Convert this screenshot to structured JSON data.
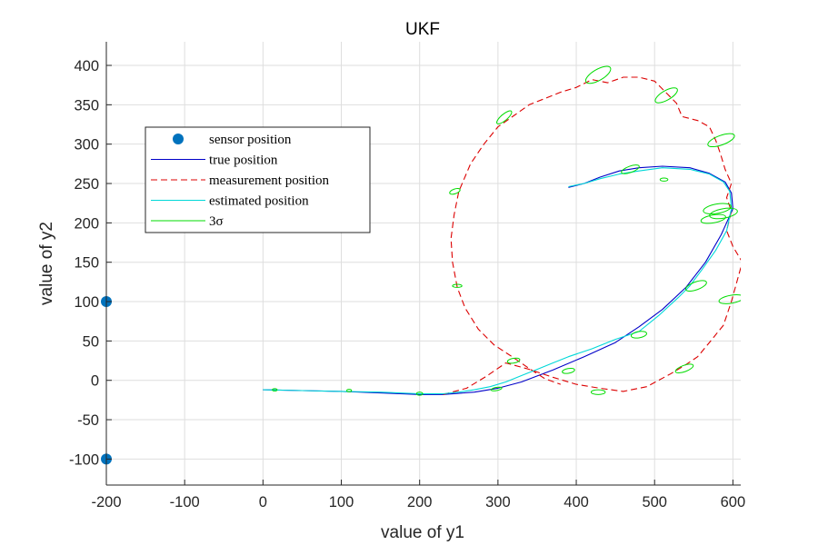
{
  "chart_data": {
    "type": "line",
    "title": "UKF",
    "xlabel": "value of y1",
    "ylabel": "value of y2",
    "xlim": [
      -200,
      610
    ],
    "ylim": [
      -133,
      430
    ],
    "xticks": [
      -200,
      -100,
      0,
      100,
      200,
      300,
      400,
      500,
      600
    ],
    "yticks": [
      -100,
      -50,
      0,
      50,
      100,
      150,
      200,
      250,
      300,
      350,
      400
    ],
    "grid": true,
    "legend_position": "upper-left",
    "legend": [
      {
        "label": "sensor position",
        "style": "marker"
      },
      {
        "label": "true position",
        "style": "solid"
      },
      {
        "label": "measurement position",
        "style": "dashed"
      },
      {
        "label": "estimated position",
        "style": "solid"
      },
      {
        "label": "3σ",
        "style": "solid"
      }
    ],
    "sensors": [
      {
        "x": -200,
        "y": 100
      },
      {
        "x": -200,
        "y": -100
      }
    ],
    "series": [
      {
        "name": "true position",
        "color": "#0000c8",
        "dash": "solid",
        "points": [
          [
            0,
            -12
          ],
          [
            50,
            -13
          ],
          [
            100,
            -14
          ],
          [
            150,
            -16
          ],
          [
            200,
            -18
          ],
          [
            230,
            -18
          ],
          [
            270,
            -15
          ],
          [
            300,
            -10
          ],
          [
            330,
            -2
          ],
          [
            370,
            13
          ],
          [
            410,
            30
          ],
          [
            450,
            48
          ],
          [
            480,
            68
          ],
          [
            510,
            90
          ],
          [
            540,
            118
          ],
          [
            565,
            150
          ],
          [
            585,
            185
          ],
          [
            600,
            218
          ],
          [
            598,
            238
          ],
          [
            590,
            252
          ],
          [
            570,
            263
          ],
          [
            545,
            270
          ],
          [
            510,
            272
          ],
          [
            480,
            270
          ],
          [
            455,
            266
          ],
          [
            430,
            258
          ],
          [
            410,
            250
          ],
          [
            390,
            245
          ]
        ]
      },
      {
        "name": "measurement position",
        "color": "#dc0000",
        "dash": "dashed",
        "points": [
          [
            230,
            -18
          ],
          [
            260,
            -10
          ],
          [
            285,
            5
          ],
          [
            310,
            22
          ],
          [
            340,
            14
          ],
          [
            370,
            4
          ],
          [
            400,
            -5
          ],
          [
            430,
            -10
          ],
          [
            460,
            -14
          ],
          [
            490,
            -8
          ],
          [
            520,
            8
          ],
          [
            540,
            20
          ],
          [
            555,
            30
          ],
          [
            570,
            48
          ],
          [
            588,
            70
          ],
          [
            598,
            100
          ],
          [
            605,
            125
          ],
          [
            612,
            150
          ],
          [
            600,
            170
          ],
          [
            592,
            190
          ],
          [
            598,
            215
          ],
          [
            592,
            232
          ],
          [
            598,
            250
          ],
          [
            590,
            268
          ],
          [
            584,
            288
          ],
          [
            578,
            305
          ],
          [
            570,
            322
          ],
          [
            555,
            330
          ],
          [
            535,
            335
          ],
          [
            528,
            352
          ],
          [
            515,
            365
          ],
          [
            500,
            380
          ],
          [
            480,
            385
          ],
          [
            460,
            385
          ],
          [
            440,
            378
          ],
          [
            420,
            382
          ],
          [
            400,
            372
          ],
          [
            380,
            366
          ],
          [
            360,
            358
          ],
          [
            340,
            350
          ],
          [
            320,
            336
          ],
          [
            300,
            322
          ],
          [
            282,
            300
          ],
          [
            265,
            275
          ],
          [
            250,
            240
          ],
          [
            244,
            210
          ],
          [
            240,
            180
          ],
          [
            242,
            150
          ],
          [
            248,
            118
          ],
          [
            258,
            92
          ],
          [
            275,
            65
          ],
          [
            295,
            45
          ],
          [
            318,
            30
          ],
          [
            340,
            15
          ],
          [
            360,
            2
          ],
          [
            380,
            -5
          ]
        ]
      },
      {
        "name": "estimated position",
        "color": "#00d8d8",
        "dash": "solid",
        "points": [
          [
            0,
            -12
          ],
          [
            50,
            -13
          ],
          [
            100,
            -14
          ],
          [
            150,
            -15
          ],
          [
            200,
            -17
          ],
          [
            230,
            -17
          ],
          [
            250,
            -15
          ],
          [
            270,
            -12
          ],
          [
            290,
            -8
          ],
          [
            310,
            -2
          ],
          [
            330,
            6
          ],
          [
            350,
            14
          ],
          [
            370,
            22
          ],
          [
            390,
            30
          ],
          [
            420,
            40
          ],
          [
            450,
            52
          ],
          [
            480,
            62
          ],
          [
            505,
            82
          ],
          [
            530,
            105
          ],
          [
            545,
            120
          ],
          [
            560,
            140
          ],
          [
            578,
            165
          ],
          [
            592,
            190
          ],
          [
            598,
            218
          ],
          [
            596,
            240
          ],
          [
            588,
            252
          ],
          [
            570,
            262
          ],
          [
            545,
            268
          ],
          [
            510,
            270
          ],
          [
            480,
            266
          ],
          [
            455,
            262
          ],
          [
            430,
            256
          ],
          [
            410,
            250
          ],
          [
            390,
            246
          ]
        ]
      }
    ],
    "sigma_ellipses": [
      {
        "x": 15,
        "y": -12,
        "rx": 3,
        "ry": 1.5,
        "angle": 0
      },
      {
        "x": 110,
        "y": -13,
        "rx": 3,
        "ry": 1.5,
        "angle": 0
      },
      {
        "x": 200,
        "y": -17,
        "rx": 4,
        "ry": 2,
        "angle": 0
      },
      {
        "x": 298,
        "y": -11,
        "rx": 7,
        "ry": 2,
        "angle": 10
      },
      {
        "x": 320,
        "y": 25,
        "rx": 8,
        "ry": 3,
        "angle": 10
      },
      {
        "x": 390,
        "y": 12,
        "rx": 8,
        "ry": 3,
        "angle": 10
      },
      {
        "x": 428,
        "y": -15,
        "rx": 9,
        "ry": 3,
        "angle": 0
      },
      {
        "x": 480,
        "y": 58,
        "rx": 10,
        "ry": 4,
        "angle": 10
      },
      {
        "x": 538,
        "y": 15,
        "rx": 12,
        "ry": 4,
        "angle": 20
      },
      {
        "x": 553,
        "y": 120,
        "rx": 14,
        "ry": 5,
        "angle": 20
      },
      {
        "x": 598,
        "y": 103,
        "rx": 16,
        "ry": 5,
        "angle": 10
      },
      {
        "x": 588,
        "y": 212,
        "rx": 18,
        "ry": 6,
        "angle": 10
      },
      {
        "x": 580,
        "y": 218,
        "rx": 18,
        "ry": 6,
        "angle": 10
      },
      {
        "x": 575,
        "y": 205,
        "rx": 16,
        "ry": 5,
        "angle": 10
      },
      {
        "x": 585,
        "y": 305,
        "rx": 18,
        "ry": 6,
        "angle": 20
      },
      {
        "x": 515,
        "y": 362,
        "rx": 16,
        "ry": 6,
        "angle": 30
      },
      {
        "x": 428,
        "y": 388,
        "rx": 18,
        "ry": 7,
        "angle": 30
      },
      {
        "x": 469,
        "y": 268,
        "rx": 12,
        "ry": 4,
        "angle": 20
      },
      {
        "x": 512,
        "y": 255,
        "rx": 5,
        "ry": 2,
        "angle": 0
      },
      {
        "x": 308,
        "y": 334,
        "rx": 12,
        "ry": 4,
        "angle": 40
      },
      {
        "x": 245,
        "y": 240,
        "rx": 7,
        "ry": 3,
        "angle": 20
      },
      {
        "x": 248,
        "y": 120,
        "rx": 6,
        "ry": 2,
        "angle": 0
      }
    ],
    "colors": {
      "sensor": "#0072bd",
      "sigma": "#00dc00",
      "grid": "#dedede",
      "axis": "#262626"
    }
  }
}
